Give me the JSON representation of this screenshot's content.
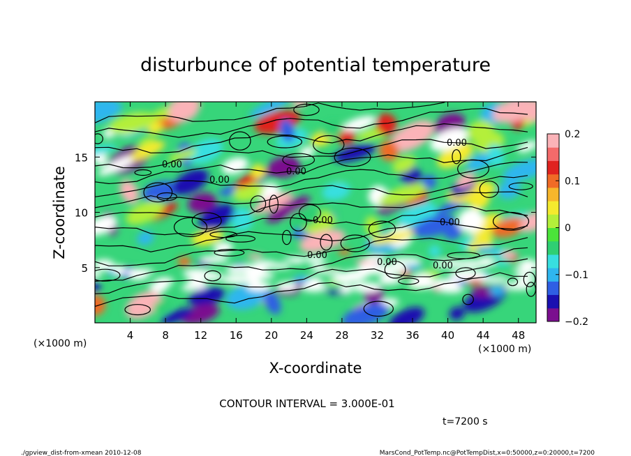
{
  "chart_data": {
    "type": "heatmap",
    "title": "disturbunce of potential temperature",
    "xlabel": "X-coordinate",
    "ylabel": "Z-coordinate",
    "x_unit_left": "(×1000 m)",
    "x_unit_right": "(×1000 m)",
    "xlim": [
      0,
      50
    ],
    "ylim": [
      0,
      20
    ],
    "x_ticks": [
      4,
      8,
      12,
      16,
      20,
      24,
      28,
      32,
      36,
      40,
      44,
      48
    ],
    "y_ticks": [
      5,
      10,
      15
    ],
    "colorbar": {
      "range": [
        -0.2,
        0.2
      ],
      "tick_values": [
        0.2,
        0.1,
        0,
        -0.1,
        -0.2
      ],
      "tick_labels": [
        "0.2",
        "0.1",
        "0",
        "−0.1",
        "−0.2"
      ],
      "colors": [
        "#7b0f8f",
        "#1a10b0",
        "#2f5fe3",
        "#2fb6ef",
        "#38dfe0",
        "#2fcf73",
        "#4be43a",
        "#b4ef3a",
        "#f4ea2e",
        "#f7b62b",
        "#f06b26",
        "#e0231f",
        "#f46a6a",
        "#fbb3b8"
      ]
    },
    "contour_label": "0.00",
    "contour_interval_text": "CONTOUR INTERVAL = 3.000E-01",
    "time_text": "t=7200 s"
  },
  "footer": {
    "left": "./gpview_dist-from-xmean   2010-12-08",
    "right": "MarsCond_PotTemp.nc@PotTempDist,x=0:50000,z=0:20000,t=7200"
  }
}
